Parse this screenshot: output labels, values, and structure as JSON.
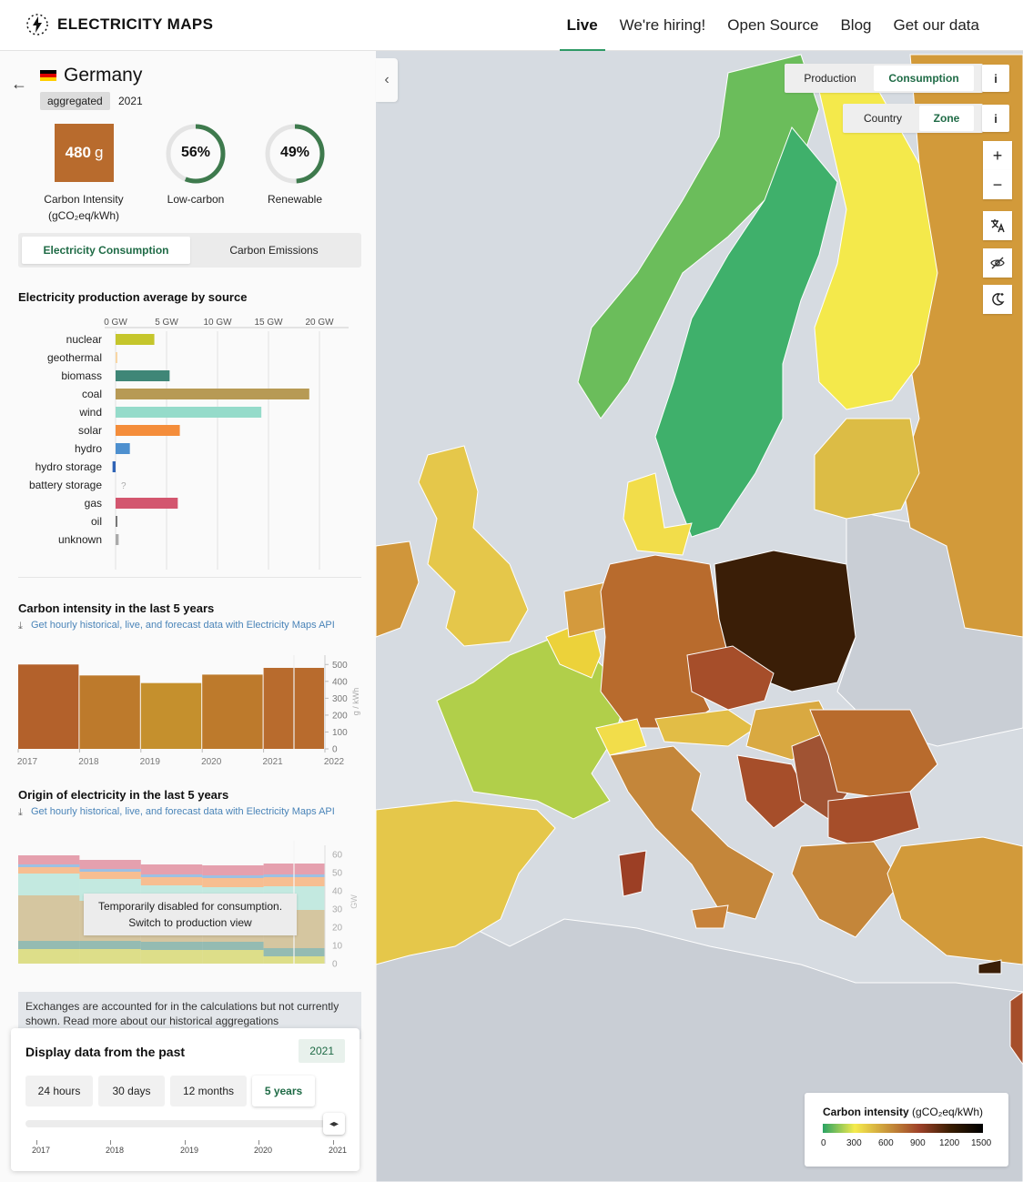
{
  "header": {
    "brand": "ELECTRICITY MAPS",
    "nav": [
      {
        "label": "Live",
        "active": true
      },
      {
        "label": "We're hiring!"
      },
      {
        "label": "Open Source"
      },
      {
        "label": "Blog"
      },
      {
        "label": "Get our data"
      }
    ]
  },
  "zone": {
    "name": "Germany",
    "badge": "aggregated",
    "year": "2021",
    "flag_colors": [
      "#000000",
      "#dd0000",
      "#ffce00"
    ]
  },
  "stats": {
    "carbon_intensity_value": "480",
    "carbon_intensity_unit": "g",
    "carbon_intensity_label": "Carbon Intensity",
    "carbon_intensity_unit_label": "(gCO₂eq/kWh)",
    "low_carbon": "56%",
    "low_carbon_fraction": 0.56,
    "low_carbon_label": "Low-carbon",
    "renewable": "49%",
    "renewable_fraction": 0.49,
    "renewable_label": "Renewable",
    "ci_color": "#b86b2d"
  },
  "tabs": {
    "consumption": "Electricity Consumption",
    "emissions": "Carbon Emissions"
  },
  "production": {
    "title": "Electricity production average by source",
    "axis_ticks": [
      "0 GW",
      "5 GW",
      "10 GW",
      "15 GW",
      "20 GW"
    ],
    "missing_marker": "?"
  },
  "ci_history": {
    "title": "Carbon intensity in the last 5 years",
    "api_link": "Get hourly historical, live, and forecast data with Electricity Maps API",
    "y_unit": "g / kWh"
  },
  "origin_history": {
    "title": "Origin of electricity in the last 5 years",
    "api_link": "Get hourly historical, live, and forecast data with Electricity Maps API",
    "y_unit": "GW",
    "tooltip_line1": "Temporarily disabled for consumption.",
    "tooltip_line2": "Switch to production view"
  },
  "note": "Exchanges are accounted for in the calculations but not currently shown. Read more about our historical aggregations",
  "time_controller": {
    "title": "Display data from the past",
    "selected_year": "2021",
    "periods": [
      {
        "label": "24 hours"
      },
      {
        "label": "30 days"
      },
      {
        "label": "12 months"
      },
      {
        "label": "5 years",
        "active": true
      }
    ],
    "years": [
      "2017",
      "2018",
      "2019",
      "2020",
      "2021"
    ],
    "thumb_glyph": "◂▸"
  },
  "map_controls": {
    "production": "Production",
    "consumption": "Consumption",
    "country": "Country",
    "zone": "Zone",
    "info": "i",
    "zoom_in": "+",
    "zoom_out": "−"
  },
  "legend": {
    "title_bold": "Carbon intensity",
    "title_unit": "(gCO₂eq/kWh)",
    "values": [
      "0",
      "300",
      "600",
      "900",
      "1200",
      "1500"
    ]
  },
  "chart_data": [
    {
      "type": "bar",
      "orientation": "horizontal",
      "title": "Electricity production average by source",
      "categories": [
        "nuclear",
        "geothermal",
        "biomass",
        "coal",
        "wind",
        "solar",
        "hydro",
        "hydro storage",
        "battery storage",
        "gas",
        "oil",
        "unknown"
      ],
      "values": [
        3.8,
        0,
        5.3,
        19.0,
        14.3,
        6.3,
        1.4,
        -0.3,
        null,
        6.1,
        0.1,
        0.3
      ],
      "colors": [
        "#c5c62c",
        "#f8d6a5",
        "#3f8677",
        "#b79a55",
        "#95dbca",
        "#f48d3b",
        "#4e90cf",
        "#2f63b6",
        "#cccccc",
        "#d3566f",
        "#777777",
        "#aaaaaa"
      ],
      "xlim": [
        0,
        22
      ],
      "x_tick_values": [
        0,
        5,
        10,
        15,
        20
      ]
    },
    {
      "type": "bar",
      "title": "Carbon intensity in the last 5 years",
      "categories": [
        "2017",
        "2018",
        "2019",
        "2020",
        "2021"
      ],
      "values": [
        500,
        435,
        390,
        440,
        480
      ],
      "colors": [
        "#b3612b",
        "#bd7a2c",
        "#c5902d",
        "#bd7a2c",
        "#b86b2d"
      ],
      "x_tick_labels": [
        "2017",
        "2018",
        "2019",
        "2020",
        "2021",
        "2022"
      ],
      "ylim": [
        0,
        550
      ],
      "y_ticks": [
        0,
        100,
        200,
        300,
        400,
        500
      ],
      "ylabel": "g / kWh"
    },
    {
      "type": "area",
      "title": "Origin of electricity in the last 5 years",
      "categories": [
        "2017",
        "2018",
        "2019",
        "2020",
        "2021"
      ],
      "ylim": [
        0,
        62
      ],
      "y_ticks": [
        0,
        10,
        20,
        30,
        40,
        50,
        60
      ],
      "ylabel": "GW",
      "series": [
        {
          "color": "#c5c62c",
          "values": [
            8,
            8,
            7.5,
            7.5,
            4
          ]
        },
        {
          "color": "#3f8677",
          "values": [
            4.5,
            4.5,
            4.5,
            4.5,
            4.5
          ]
        },
        {
          "color": "#b79a55",
          "values": [
            25,
            22,
            18,
            16,
            21
          ]
        },
        {
          "color": "#95dbca",
          "values": [
            12,
            12,
            13,
            14,
            13
          ]
        },
        {
          "color": "#f48d3b",
          "values": [
            3.5,
            4,
            4.5,
            5,
            5
          ]
        },
        {
          "color": "#4e90cf",
          "values": [
            1.5,
            1.5,
            1.5,
            1.5,
            1.5
          ]
        },
        {
          "color": "#d3566f",
          "values": [
            5,
            5,
            5.5,
            5.5,
            6
          ]
        }
      ]
    }
  ]
}
